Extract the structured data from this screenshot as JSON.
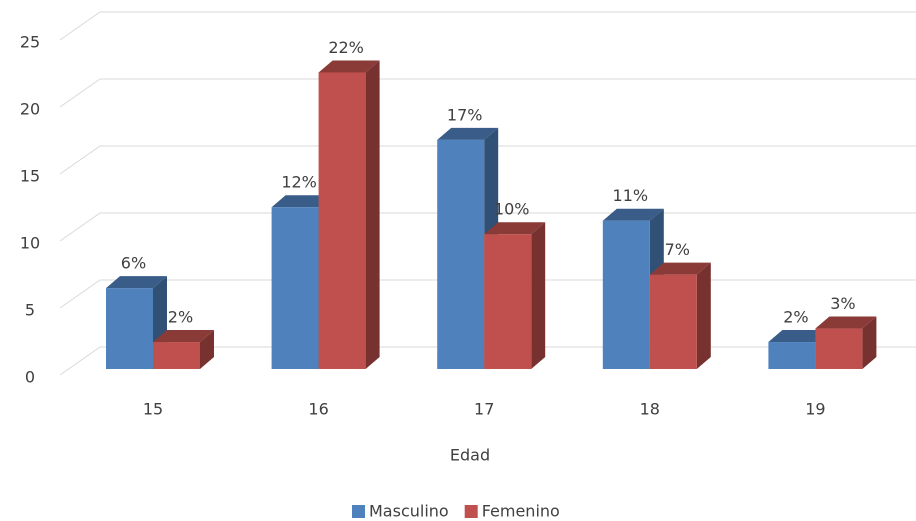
{
  "chart_data": {
    "type": "bar3d",
    "x_label": "Edad",
    "categories": [
      "15",
      "16",
      "17",
      "18",
      "19"
    ],
    "series": [
      {
        "name": "Masculino",
        "color": "#4f81bd",
        "values": [
          6,
          12,
          17,
          11,
          2
        ],
        "value_labels": [
          "6%",
          "12%",
          "17%",
          "11%",
          "2%"
        ]
      },
      {
        "name": "Femenino",
        "color": "#c0504d",
        "values": [
          2,
          22,
          10,
          7,
          3
        ],
        "value_labels": [
          "2%",
          "22%",
          "10%",
          "7%",
          "3%"
        ]
      }
    ],
    "ylim": [
      0,
      25
    ],
    "yticks": [
      0,
      5,
      10,
      15,
      20,
      25
    ],
    "grid": true,
    "legend": "bottom"
  }
}
